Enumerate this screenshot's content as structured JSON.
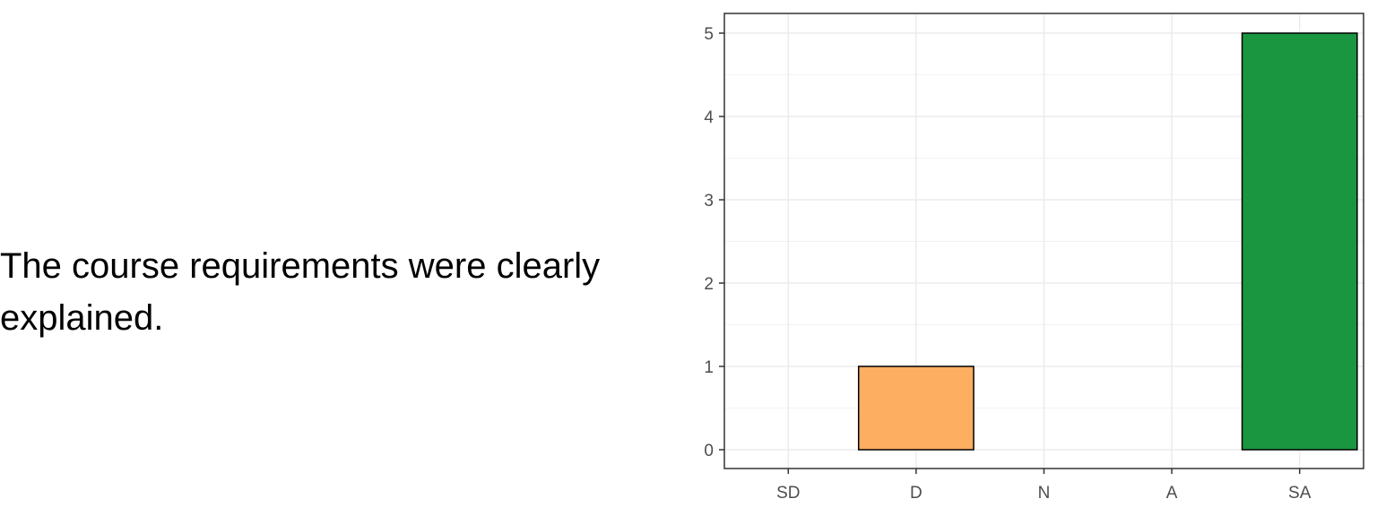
{
  "statement": "The course requirements were clearly explained.",
  "chart_data": {
    "type": "bar",
    "categories": [
      "SD",
      "D",
      "N",
      "A",
      "SA"
    ],
    "values": [
      0,
      1,
      0,
      0,
      5
    ],
    "colors": [
      "#d7191c",
      "#fdae61",
      "#ffffbf",
      "#a6d96a",
      "#1a9641"
    ],
    "title": "",
    "xlabel": "",
    "ylabel": "",
    "ylim": [
      0,
      5
    ],
    "yticks": [
      0,
      1,
      2,
      3,
      4,
      5
    ],
    "grid": true,
    "legend": "none"
  }
}
